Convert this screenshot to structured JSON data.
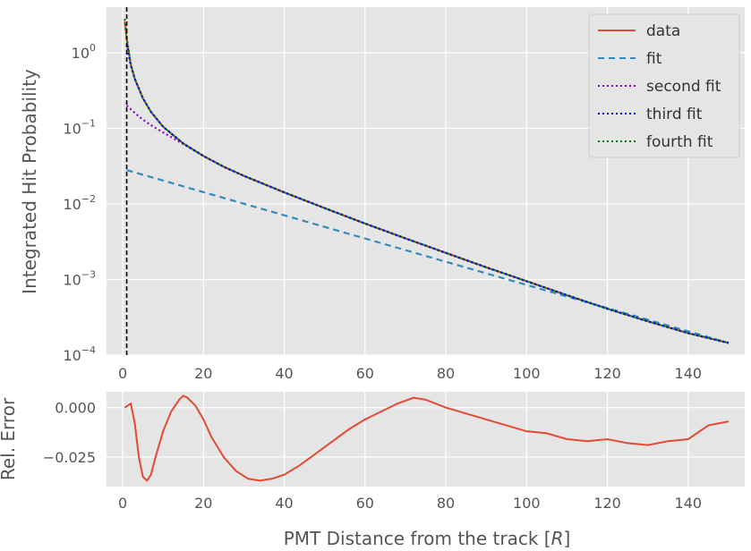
{
  "chart_data": [
    {
      "type": "line",
      "xlabel": "",
      "ylabel": "Integrated Hit Probability",
      "xlim": [
        -4,
        154
      ],
      "ylim": [
        0.0001,
        4.0
      ],
      "yscale": "log",
      "grid": true,
      "legend_position": "top-right",
      "x_ticks": [
        0,
        20,
        40,
        60,
        80,
        100,
        120,
        140
      ],
      "x_tick_labels": [
        "0",
        "20",
        "40",
        "60",
        "80",
        "100",
        "120",
        "140"
      ],
      "y_ticks": [
        1,
        0.1,
        0.01,
        0.001,
        0.0001
      ],
      "y_tick_labels": [
        {
          "base": "10",
          "exp": "0"
        },
        {
          "base": "10",
          "exp": "−1"
        },
        {
          "base": "10",
          "exp": "−2"
        },
        {
          "base": "10",
          "exp": "−3"
        },
        {
          "base": "10",
          "exp": "−4"
        }
      ],
      "vline_x": 1.0,
      "series": [
        {
          "name": "data",
          "color": "#E24A33",
          "dash": "solid",
          "x": [
            0.5,
            1,
            2,
            3,
            5,
            7,
            10,
            15,
            20,
            25,
            30,
            40,
            50,
            60,
            70,
            80,
            90,
            100,
            110,
            120,
            130,
            140,
            150
          ],
          "y": [
            2.6,
            1.5,
            0.7,
            0.45,
            0.25,
            0.165,
            0.105,
            0.063,
            0.043,
            0.031,
            0.0235,
            0.0142,
            0.0088,
            0.0055,
            0.0035,
            0.00225,
            0.00145,
            0.00095,
            0.00062,
            0.00041,
            0.00028,
            0.000195,
            0.000145
          ]
        },
        {
          "name": "fit",
          "color": "#348ABD",
          "dash": "7,5",
          "x": [
            1,
            150
          ],
          "y": [
            0.028,
            0.000145
          ]
        },
        {
          "name": "second fit",
          "color": "#8B00C9",
          "dash": "2,3",
          "x": [
            1,
            3,
            5,
            7,
            10,
            15,
            20,
            25,
            30,
            40,
            50,
            60,
            70,
            80,
            90,
            100,
            110,
            120,
            130,
            140,
            150
          ],
          "y": [
            0.2,
            0.16,
            0.13,
            0.11,
            0.088,
            0.062,
            0.043,
            0.031,
            0.0235,
            0.0142,
            0.0088,
            0.0055,
            0.0035,
            0.00225,
            0.00145,
            0.00095,
            0.00062,
            0.00041,
            0.00028,
            0.000195,
            0.000145
          ]
        },
        {
          "name": "third fit",
          "color": "#0000FF",
          "dash": "2,3",
          "x": [
            1,
            2,
            3,
            5,
            7,
            10,
            15,
            20,
            25,
            30,
            40,
            50,
            60,
            70,
            80,
            90,
            100,
            110,
            120,
            130,
            140,
            150
          ],
          "y": [
            1.3,
            0.68,
            0.45,
            0.25,
            0.165,
            0.105,
            0.063,
            0.043,
            0.031,
            0.0235,
            0.0142,
            0.0088,
            0.0055,
            0.0035,
            0.00225,
            0.00145,
            0.00095,
            0.00062,
            0.00041,
            0.00028,
            0.000195,
            0.000145
          ]
        },
        {
          "name": "fourth fit",
          "color": "#008000",
          "dash": "2,3",
          "x": [
            0.5,
            1,
            2,
            3,
            5,
            7,
            10,
            15,
            20,
            25,
            30,
            40,
            50,
            60,
            70,
            80,
            90,
            100,
            110,
            120,
            130,
            140,
            150
          ],
          "y": [
            2.8,
            1.6,
            0.71,
            0.45,
            0.25,
            0.165,
            0.105,
            0.063,
            0.043,
            0.031,
            0.0235,
            0.0142,
            0.0088,
            0.0055,
            0.0035,
            0.00225,
            0.00145,
            0.00095,
            0.00062,
            0.00041,
            0.00028,
            0.000195,
            0.000145
          ]
        }
      ]
    },
    {
      "type": "line",
      "xlabel": "PMT Distance from the track [",
      "xlabel_math": "R",
      "xlabel_end": "]",
      "ylabel": "Rel. Error",
      "xlim": [
        -4,
        154
      ],
      "ylim": [
        -0.04,
        0.008
      ],
      "grid": true,
      "x_ticks": [
        0,
        20,
        40,
        60,
        80,
        100,
        120,
        140
      ],
      "x_tick_labels": [
        "0",
        "20",
        "40",
        "60",
        "80",
        "100",
        "120",
        "140"
      ],
      "y_ticks": [
        0.0,
        -0.025
      ],
      "y_tick_labels": [
        "0.000",
        "−0.025"
      ],
      "series": [
        {
          "name": "",
          "color": "#E24A33",
          "dash": "solid",
          "x": [
            0.5,
            2,
            3,
            4,
            5,
            6,
            7,
            8,
            10,
            12,
            14,
            15,
            16,
            18,
            20,
            22,
            25,
            28,
            31,
            34,
            37,
            40,
            44,
            48,
            52,
            56,
            60,
            62,
            65,
            68,
            72,
            75,
            80,
            85,
            90,
            95,
            100,
            105,
            110,
            115,
            120,
            125,
            130,
            135,
            140,
            145,
            150
          ],
          "y": [
            0.0,
            0.002,
            -0.008,
            -0.025,
            -0.035,
            -0.037,
            -0.034,
            -0.026,
            -0.012,
            -0.002,
            0.004,
            0.006,
            0.005,
            0.001,
            -0.006,
            -0.015,
            -0.025,
            -0.032,
            -0.036,
            -0.037,
            -0.036,
            -0.034,
            -0.029,
            -0.023,
            -0.017,
            -0.011,
            -0.006,
            -0.004,
            -0.001,
            0.002,
            0.005,
            0.004,
            0.0,
            -0.003,
            -0.006,
            -0.009,
            -0.012,
            -0.013,
            -0.016,
            -0.017,
            -0.016,
            -0.018,
            -0.019,
            -0.017,
            -0.016,
            -0.009,
            -0.007
          ]
        }
      ]
    }
  ]
}
